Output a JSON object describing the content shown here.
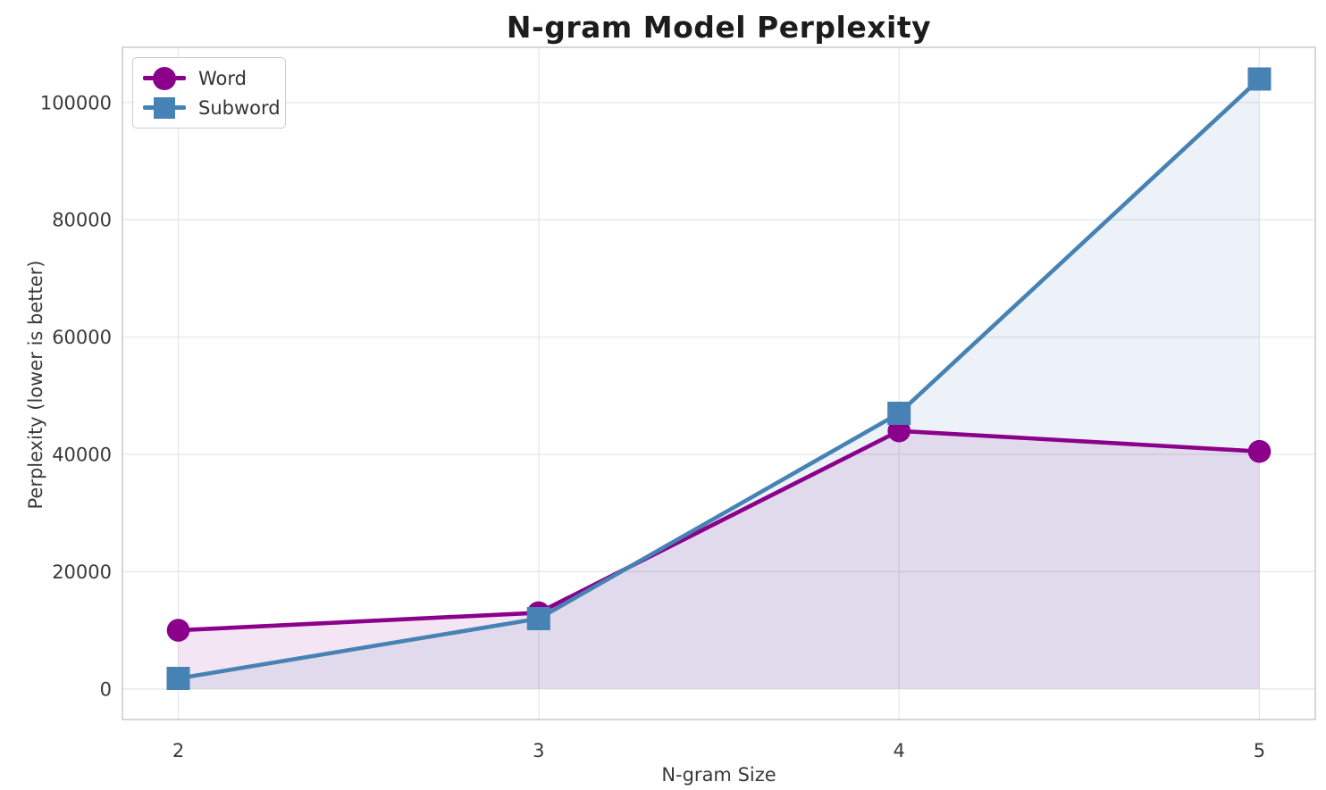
{
  "chart_data": {
    "type": "line",
    "title": "N-gram Model Perplexity",
    "xlabel": "N-gram Size",
    "ylabel": "Perplexity (lower is better)",
    "x": [
      2,
      3,
      4,
      5
    ],
    "series": [
      {
        "name": "Word",
        "color": "#8B008B",
        "marker": "circle",
        "values": [
          10000,
          13000,
          44000,
          40500
        ]
      },
      {
        "name": "Subword",
        "color": "#4682B4",
        "marker": "square",
        "values": [
          1800,
          12000,
          47000,
          104000
        ]
      }
    ],
    "x_ticks": [
      2,
      3,
      4,
      5
    ],
    "y_ticks": [
      0,
      20000,
      40000,
      60000,
      80000,
      100000
    ],
    "xlim": [
      1.845,
      5.155
    ],
    "ylim": [
      -5200,
      109400
    ],
    "grid": true,
    "legend_position": "upper left",
    "fill_opacity": 0.1,
    "fill_baseline": 0,
    "background_color": "#ffffff",
    "grid_color": "#e7e7e7",
    "spine_color": "#c9c9c9"
  }
}
